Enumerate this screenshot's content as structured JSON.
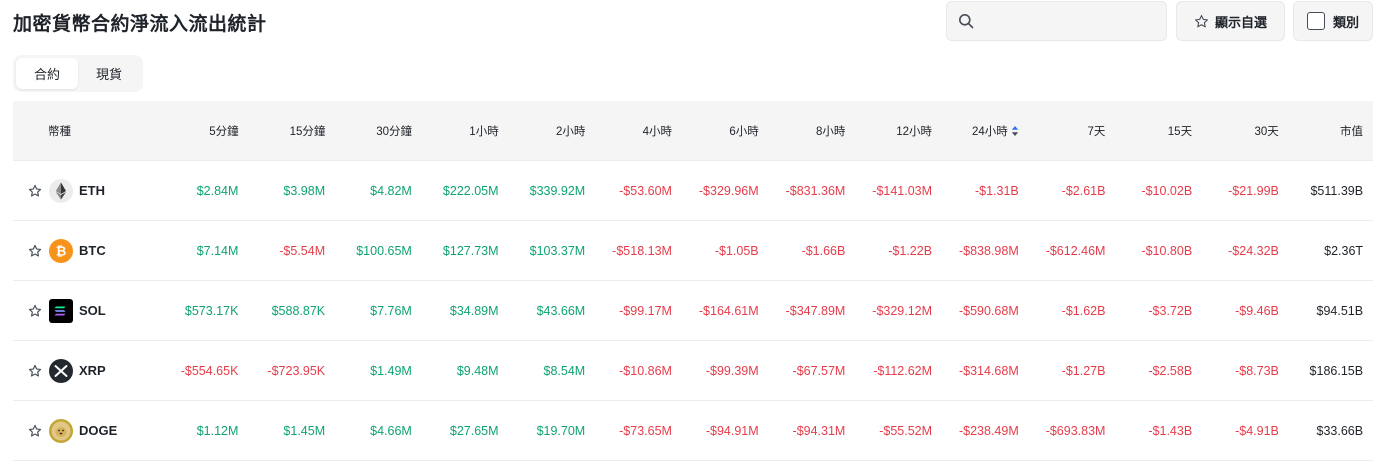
{
  "page": {
    "title": "加密貨幣合約淨流入流出統計"
  },
  "search": {
    "placeholder": ""
  },
  "buttons": {
    "favorites_label": "顯示自選",
    "category_label": "類別"
  },
  "tabs": [
    {
      "label": "合約",
      "active": true
    },
    {
      "label": "現貨",
      "active": false
    }
  ],
  "table": {
    "headers": [
      "幣種",
      "5分鐘",
      "15分鐘",
      "30分鐘",
      "1小時",
      "2小時",
      "4小時",
      "6小時",
      "8小時",
      "12小時",
      "24小時",
      "7天",
      "15天",
      "30天",
      "市值"
    ],
    "rows": [
      {
        "coin": "ETH",
        "icon": "eth-icon",
        "values": [
          "$2.84M",
          "$3.98M",
          "$4.82M",
          "$222.05M",
          "$339.92M",
          "-$53.60M",
          "-$329.96M",
          "-$831.36M",
          "-$141.03M",
          "-$1.31B",
          "-$2.61B",
          "-$10.02B",
          "-$21.99B",
          "$511.39B"
        ]
      },
      {
        "coin": "BTC",
        "icon": "btc-icon",
        "values": [
          "$7.14M",
          "-$5.54M",
          "$100.65M",
          "$127.73M",
          "$103.37M",
          "-$518.13M",
          "-$1.05B",
          "-$1.66B",
          "-$1.22B",
          "-$838.98M",
          "-$612.46M",
          "-$10.80B",
          "-$24.32B",
          "$2.36T"
        ]
      },
      {
        "coin": "SOL",
        "icon": "sol-icon",
        "values": [
          "$573.17K",
          "$588.87K",
          "$7.76M",
          "$34.89M",
          "$43.66M",
          "-$99.17M",
          "-$164.61M",
          "-$347.89M",
          "-$329.12M",
          "-$590.68M",
          "-$1.62B",
          "-$3.72B",
          "-$9.46B",
          "$94.51B"
        ]
      },
      {
        "coin": "XRP",
        "icon": "xrp-icon",
        "values": [
          "-$554.65K",
          "-$723.95K",
          "$1.49M",
          "$9.48M",
          "$8.54M",
          "-$10.86M",
          "-$99.39M",
          "-$67.57M",
          "-$112.62M",
          "-$314.68M",
          "-$1.27B",
          "-$2.58B",
          "-$8.73B",
          "$186.15B"
        ]
      },
      {
        "coin": "DOGE",
        "icon": "doge-icon",
        "values": [
          "$1.12M",
          "$1.45M",
          "$4.66M",
          "$27.65M",
          "$19.70M",
          "-$73.65M",
          "-$94.91M",
          "-$94.31M",
          "-$55.52M",
          "-$238.49M",
          "-$693.83M",
          "-$1.43B",
          "-$4.91B",
          "$33.66B"
        ]
      }
    ]
  },
  "colors": {
    "positive": "#0ea371",
    "negative": "#e63c4a",
    "neutral": "#1e2329",
    "header_bg": "#f5f5f5",
    "sort_active": "#2a6df5"
  }
}
